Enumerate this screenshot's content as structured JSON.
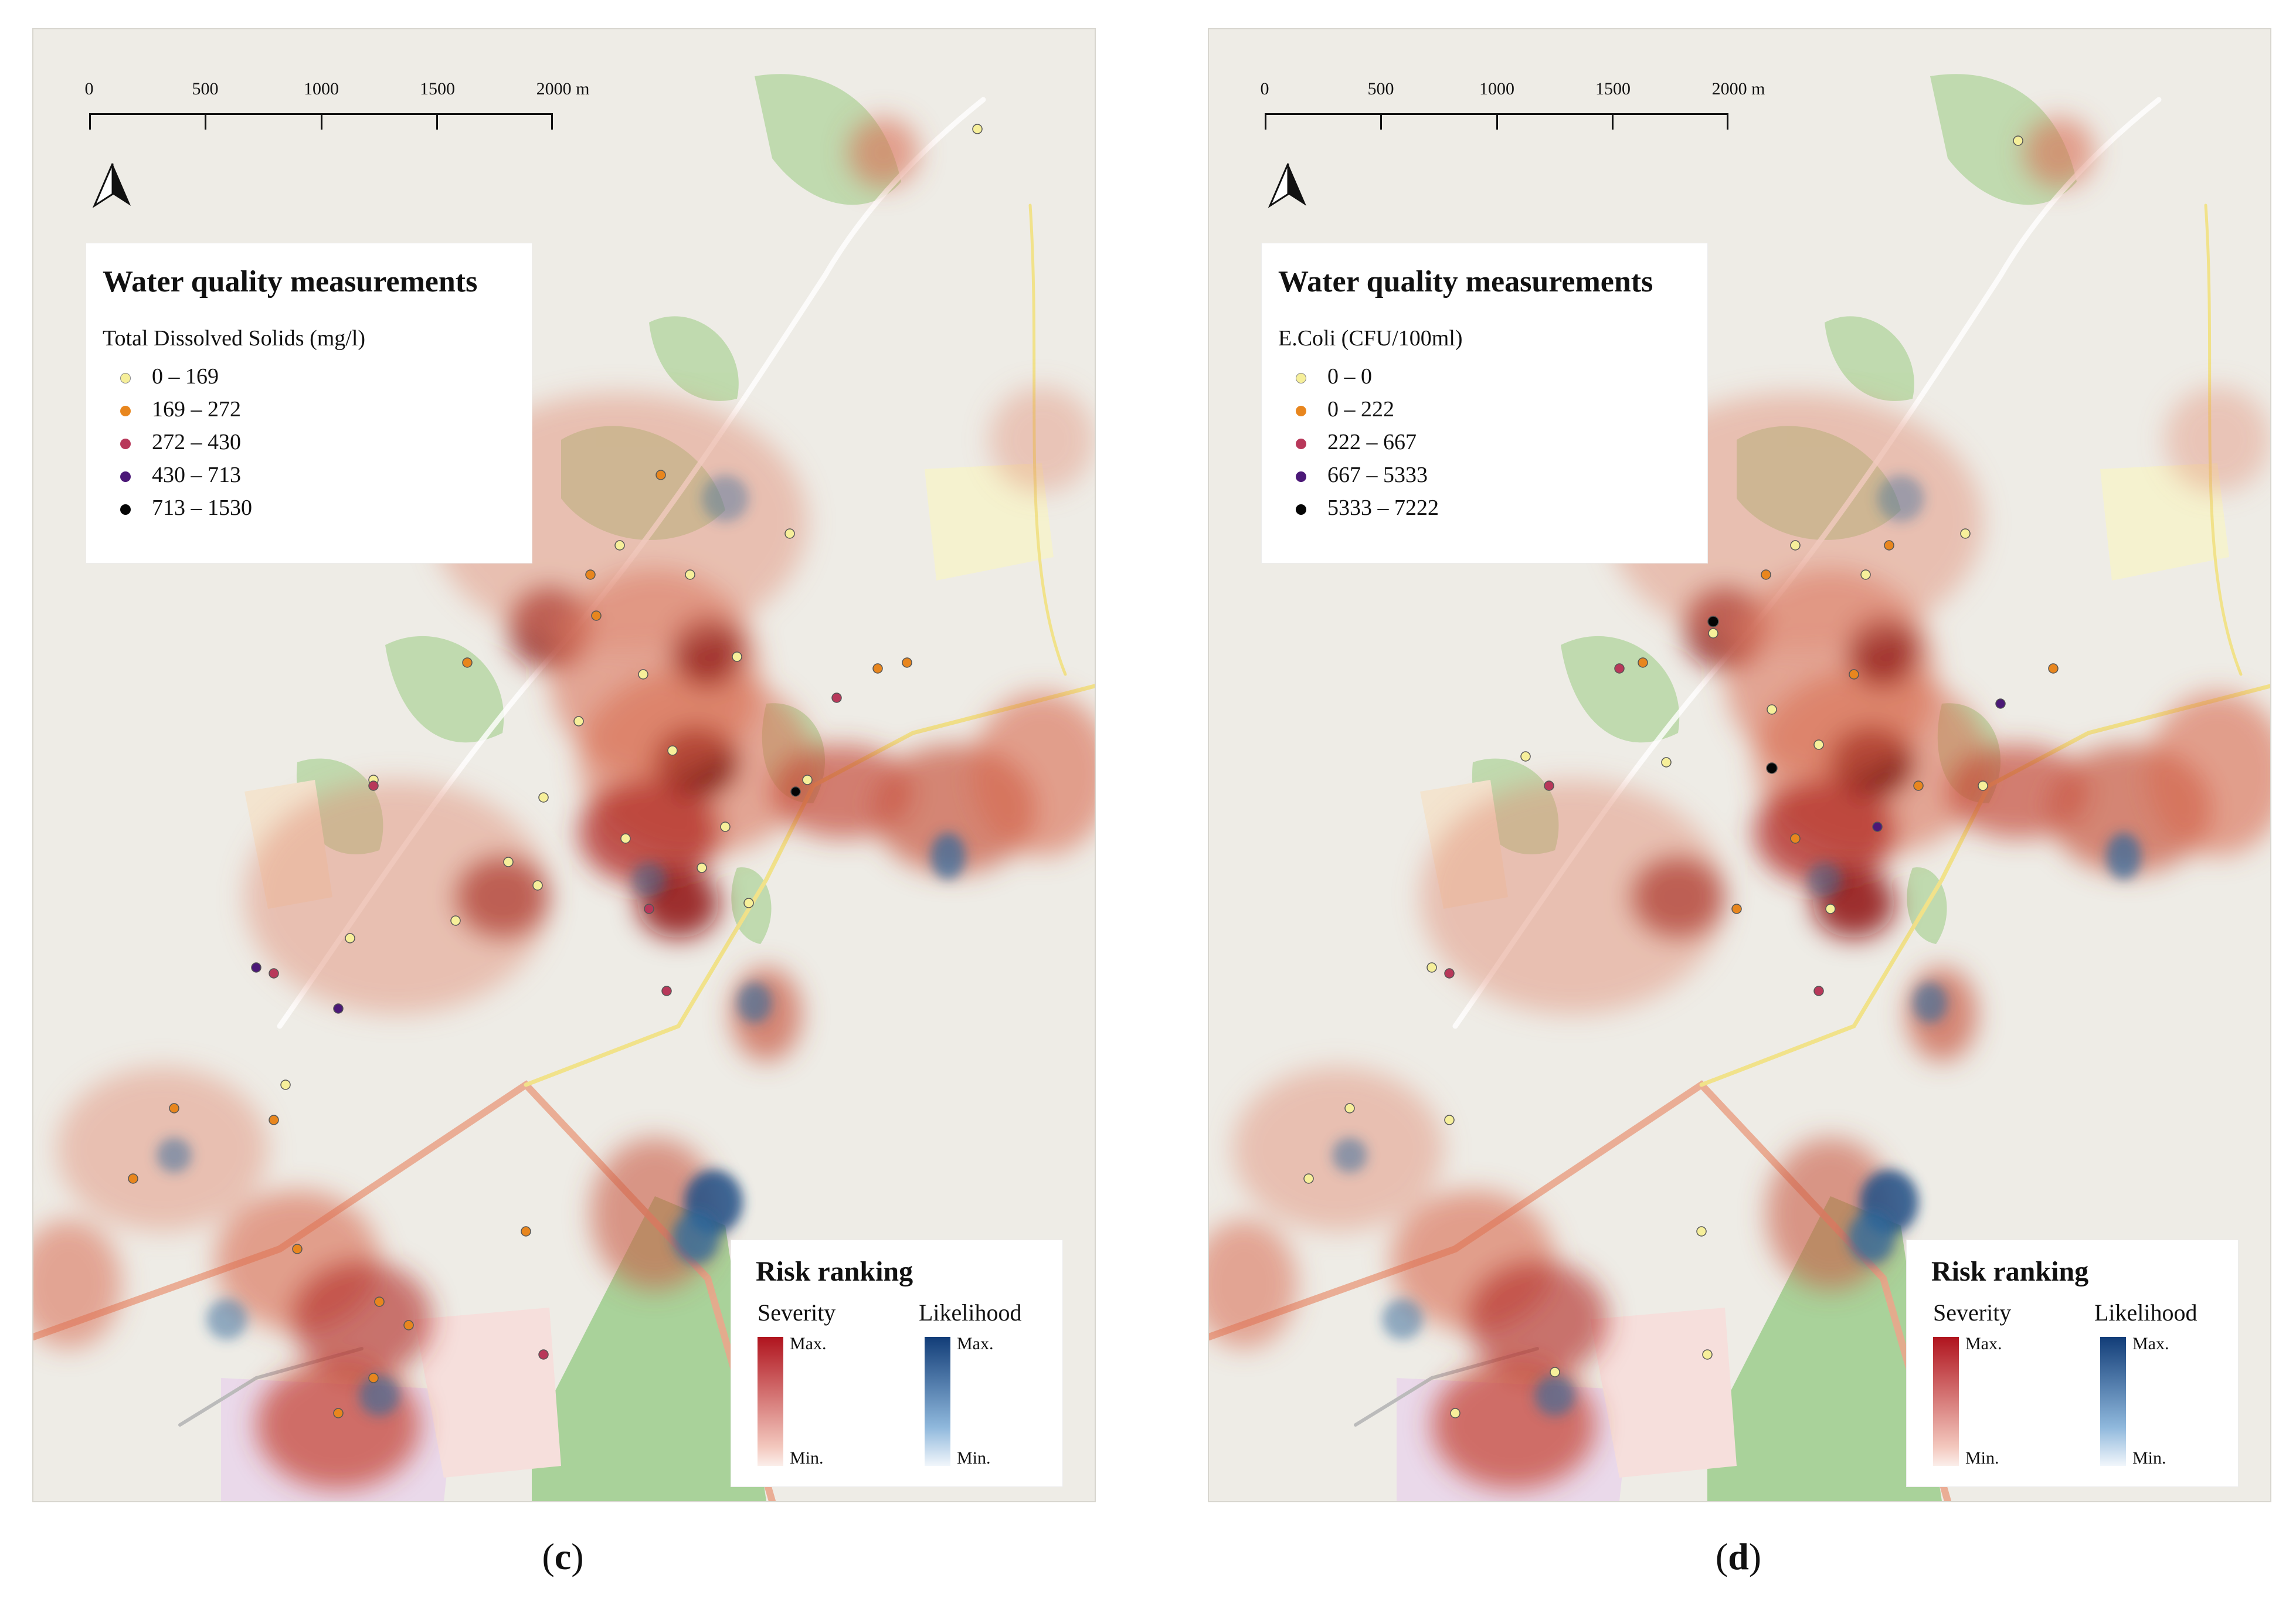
{
  "panels": [
    {
      "id": "c",
      "panel_label": "c",
      "scale_bar": {
        "ticks": [
          "0",
          "500",
          "1000",
          "1500",
          "2000 m"
        ]
      },
      "legend": {
        "title": "Water quality measurements",
        "subtitle": "Total Dissolved Solids (mg/l)",
        "classes": [
          {
            "label": "0 – 169",
            "color": "#f6ef9a"
          },
          {
            "label": "169 – 272",
            "color": "#e8861e"
          },
          {
            "label": "272 – 430",
            "color": "#b8385a"
          },
          {
            "label": "430 – 713",
            "color": "#4b1877"
          },
          {
            "label": "713 – 1530",
            "color": "#050505"
          }
        ]
      },
      "risk_ranking": {
        "title": "Risk ranking",
        "severity_label": "Severity",
        "likelihood_label": "Likelihood",
        "max_label": "Max.",
        "min_label": "Min.",
        "severity_color": "#b0141e",
        "likelihood_color": "#123d78"
      }
    },
    {
      "id": "d",
      "panel_label": "d",
      "scale_bar": {
        "ticks": [
          "0",
          "500",
          "1000",
          "1500",
          "2000 m"
        ]
      },
      "legend": {
        "title": "Water quality measurements",
        "subtitle": "E.Coli (CFU/100ml)",
        "classes": [
          {
            "label": "0 – 0",
            "color": "#f6ef9a"
          },
          {
            "label": "0 – 222",
            "color": "#e8861e"
          },
          {
            "label": "222 – 667",
            "color": "#b8385a"
          },
          {
            "label": "667 – 5333",
            "color": "#4b1877"
          },
          {
            "label": "5333 – 7222",
            "color": "#050505"
          }
        ]
      },
      "risk_ranking": {
        "title": "Risk ranking",
        "severity_label": "Severity",
        "likelihood_label": "Likelihood",
        "max_label": "Max.",
        "min_label": "Min.",
        "severity_color": "#b0141e",
        "likelihood_color": "#123d78"
      }
    }
  ],
  "map_colors": {
    "land": "#eeece6",
    "vegetation": "#a9cf97",
    "road": "#e99a7c",
    "hotspot": "#8e1210",
    "likelihood": "#2f6a9c"
  }
}
